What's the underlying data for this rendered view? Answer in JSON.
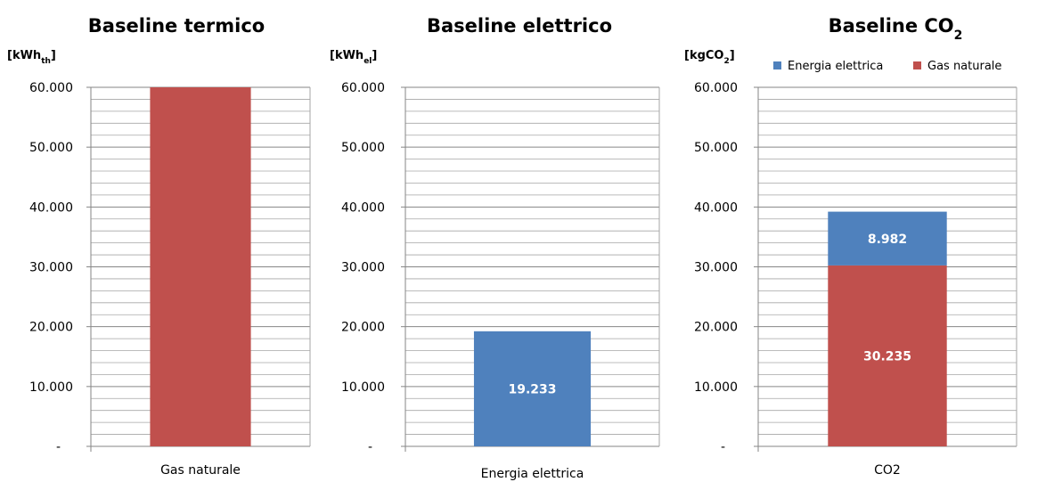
{
  "chart_data": [
    {
      "type": "bar",
      "title": "Baseline termico",
      "unit_label": {
        "main": "[kWh",
        "sub": "th",
        "end": "]"
      },
      "categories": [
        "Gas naturale"
      ],
      "series": [
        {
          "name": "Gas naturale",
          "values": [
            60000
          ],
          "color": "#C0504D",
          "data_labels": [
            ""
          ]
        }
      ],
      "ylim": [
        0,
        60000
      ],
      "yticks": [
        "-",
        "10.000",
        "20.000",
        "30.000",
        "40.000",
        "50.000",
        "60.000"
      ],
      "grid": true,
      "legend": null
    },
    {
      "type": "bar",
      "title": "Baseline elettrico",
      "unit_label": {
        "main": "[kWh",
        "sub": "el",
        "end": "]"
      },
      "categories": [
        "Energia elettrica"
      ],
      "series": [
        {
          "name": "Energia elettrica",
          "values": [
            19233
          ],
          "color": "#4F81BD",
          "data_labels": [
            "19.233"
          ]
        }
      ],
      "ylim": [
        0,
        60000
      ],
      "yticks": [
        "-",
        "10.000",
        "20.000",
        "30.000",
        "40.000",
        "50.000",
        "60.000"
      ],
      "grid": true,
      "legend": null
    },
    {
      "type": "bar",
      "stacked": true,
      "title": "Baseline CO",
      "title_sub": "2",
      "unit_label": {
        "main": "[kgCO",
        "sub": "2",
        "end": "]"
      },
      "categories": [
        "CO2"
      ],
      "series": [
        {
          "name": "Gas naturale",
          "values": [
            30235
          ],
          "color": "#C0504D",
          "data_labels": [
            "30.235"
          ]
        },
        {
          "name": "Energia elettrica",
          "values": [
            8982
          ],
          "color": "#4F81BD",
          "data_labels": [
            "8.982"
          ]
        }
      ],
      "ylim": [
        0,
        60000
      ],
      "yticks": [
        "-",
        "10.000",
        "20.000",
        "30.000",
        "40.000",
        "50.000",
        "60.000"
      ],
      "grid": true,
      "legend": {
        "position": "top-right",
        "entries": [
          {
            "name": "Energia elettrica",
            "color": "#4F81BD"
          },
          {
            "name": "Gas naturale",
            "color": "#C0504D"
          }
        ]
      }
    }
  ]
}
